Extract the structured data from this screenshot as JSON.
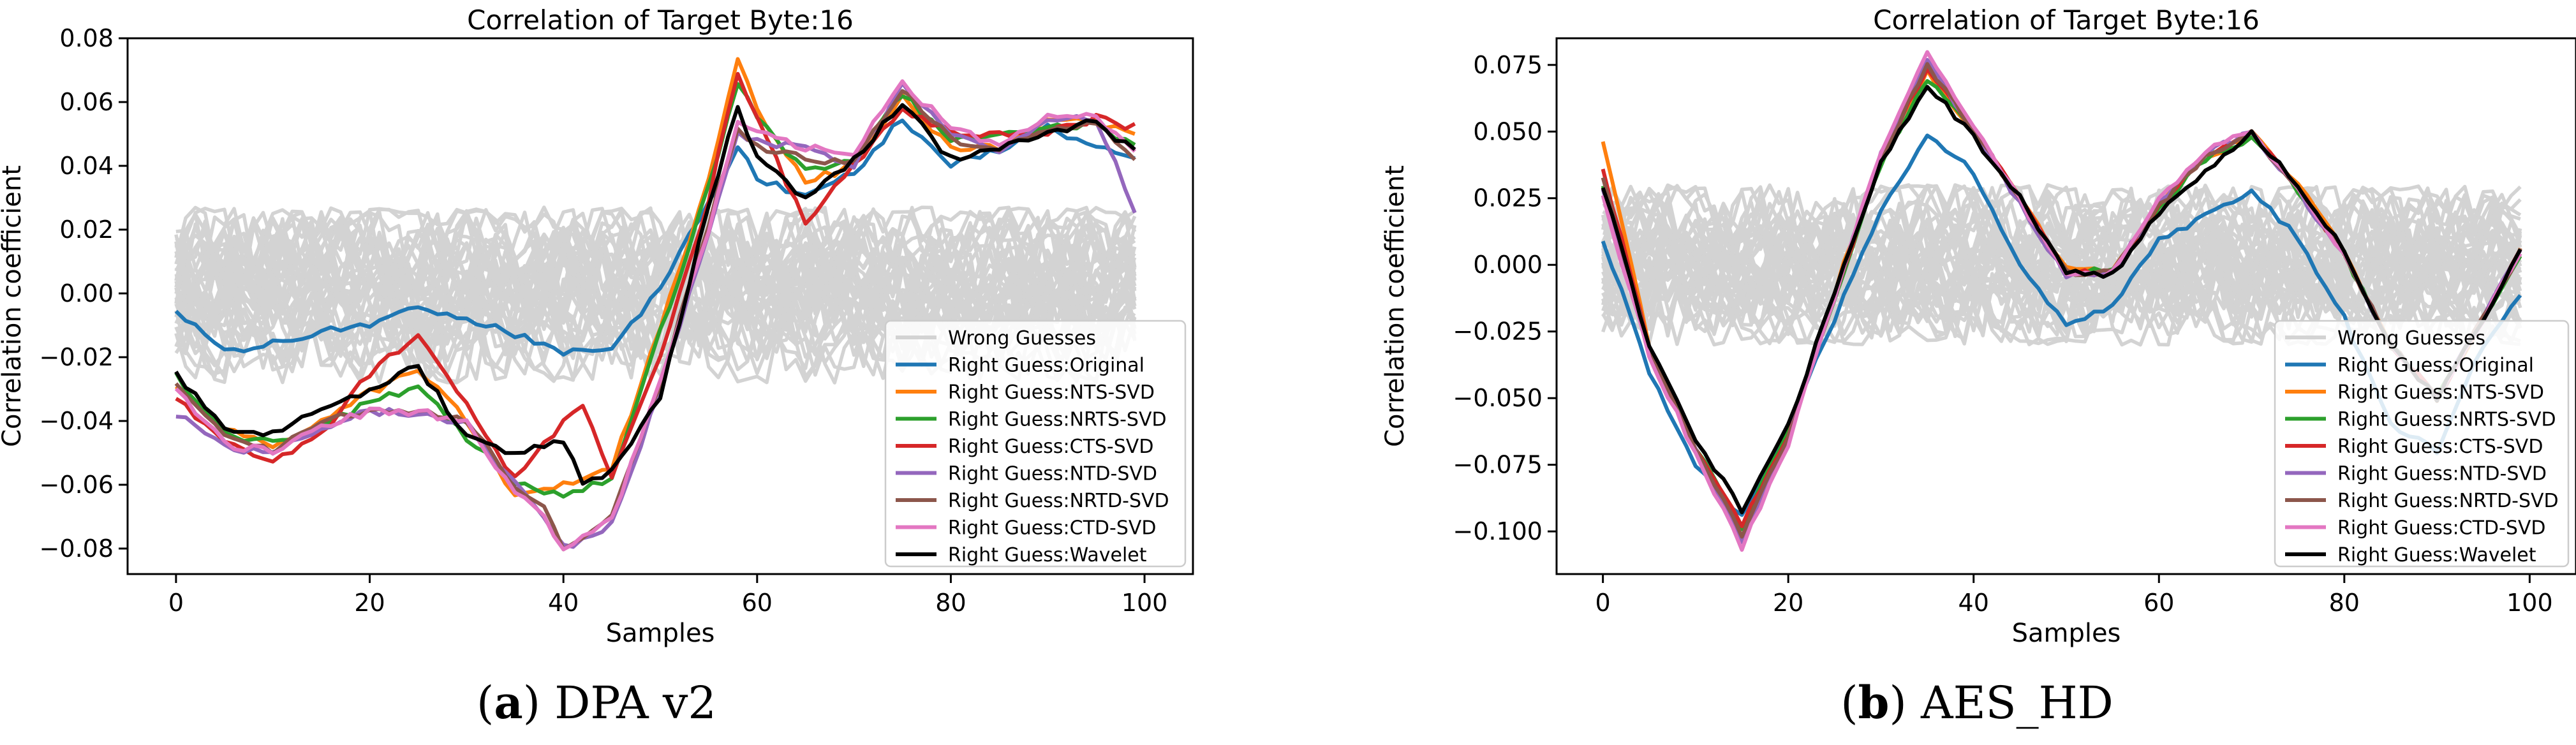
{
  "colors": {
    "Wrong Guesses": "#d3d3d3",
    "Original": "#1f77b4",
    "NTS-SVD": "#ff7f0e",
    "NRTS-SVD": "#2ca02c",
    "CTS-SVD": "#d62728",
    "NTD-SVD": "#9467bd",
    "NRTD-SVD": "#8c564b",
    "CTD-SVD": "#e377c2",
    "Wavelet": "#000000"
  },
  "captions": [
    {
      "letter": "a",
      "text": "DPA v2"
    },
    {
      "letter": "b",
      "text": "AES_HD"
    }
  ],
  "chart_data": [
    {
      "type": "line",
      "title": "Correlation of Target Byte:16",
      "xlabel": "Samples",
      "ylabel": "Correlation coefficient",
      "xlim": [
        -5,
        105
      ],
      "ylim": [
        -0.088,
        0.08
      ],
      "xticks": [
        0,
        20,
        40,
        60,
        80,
        100
      ],
      "yticks": [
        -0.08,
        -0.06,
        -0.04,
        -0.02,
        0.0,
        0.02,
        0.04,
        0.06,
        0.08
      ],
      "ytick_labels": [
        "−0.08",
        "−0.06",
        "−0.04",
        "−0.02",
        "0.00",
        "0.02",
        "0.04",
        "0.06",
        "0.08"
      ],
      "legend_position": "lower-right",
      "legend": [
        "Wrong Guesses",
        "Right Guess:Original",
        "Right Guess:NTS-SVD",
        "Right Guess:NRTS-SVD",
        "Right Guess:CTS-SVD",
        "Right Guess:NTD-SVD",
        "Right Guess:NRTD-SVD",
        "Right Guess:CTD-SVD",
        "Right Guess:Wavelet"
      ],
      "wrong_guesses": {
        "count": 40,
        "range": [
          -0.028,
          0.027
        ]
      },
      "series": [
        {
          "name": "Original",
          "x": [
            0,
            5,
            10,
            15,
            20,
            25,
            30,
            35,
            40,
            45,
            50,
            55,
            58,
            60,
            65,
            70,
            75,
            80,
            85,
            90,
            95,
            99
          ],
          "y": [
            -0.006,
            -0.018,
            -0.016,
            -0.012,
            -0.01,
            -0.004,
            -0.008,
            -0.013,
            -0.019,
            -0.017,
            0.002,
            0.028,
            0.047,
            0.036,
            0.03,
            0.038,
            0.055,
            0.04,
            0.045,
            0.052,
            0.046,
            0.043
          ]
        },
        {
          "name": "NTS-SVD",
          "x": [
            0,
            5,
            10,
            15,
            20,
            25,
            30,
            35,
            40,
            45,
            50,
            55,
            58,
            60,
            65,
            70,
            75,
            80,
            85,
            90,
            95,
            99
          ],
          "y": [
            -0.03,
            -0.043,
            -0.048,
            -0.04,
            -0.031,
            -0.024,
            -0.04,
            -0.063,
            -0.06,
            -0.055,
            -0.01,
            0.035,
            0.073,
            0.058,
            0.035,
            0.04,
            0.062,
            0.045,
            0.046,
            0.054,
            0.054,
            0.05
          ]
        },
        {
          "name": "NRTS-SVD",
          "x": [
            0,
            5,
            10,
            15,
            20,
            25,
            30,
            35,
            40,
            45,
            50,
            55,
            58,
            60,
            65,
            70,
            75,
            80,
            85,
            90,
            95,
            99
          ],
          "y": [
            -0.026,
            -0.044,
            -0.047,
            -0.042,
            -0.034,
            -0.029,
            -0.045,
            -0.06,
            -0.063,
            -0.058,
            -0.012,
            0.033,
            0.066,
            0.055,
            0.038,
            0.042,
            0.063,
            0.048,
            0.049,
            0.052,
            0.053,
            0.046
          ]
        },
        {
          "name": "CTS-SVD",
          "x": [
            0,
            5,
            10,
            15,
            20,
            25,
            30,
            35,
            40,
            42,
            45,
            50,
            55,
            58,
            60,
            65,
            70,
            75,
            80,
            85,
            90,
            95,
            99
          ],
          "y": [
            -0.032,
            -0.047,
            -0.052,
            -0.044,
            -0.025,
            -0.013,
            -0.035,
            -0.058,
            -0.04,
            -0.036,
            -0.058,
            -0.02,
            0.03,
            0.07,
            0.055,
            0.022,
            0.04,
            0.058,
            0.05,
            0.05,
            0.05,
            0.055,
            0.052
          ]
        },
        {
          "name": "NTD-SVD",
          "x": [
            0,
            5,
            10,
            15,
            20,
            25,
            30,
            35,
            38,
            40,
            45,
            50,
            55,
            58,
            60,
            65,
            70,
            75,
            80,
            85,
            90,
            95,
            99
          ],
          "y": [
            -0.038,
            -0.048,
            -0.05,
            -0.043,
            -0.037,
            -0.038,
            -0.04,
            -0.06,
            -0.07,
            -0.08,
            -0.072,
            -0.03,
            0.02,
            0.05,
            0.048,
            0.045,
            0.04,
            0.065,
            0.05,
            0.044,
            0.055,
            0.055,
            0.026
          ]
        },
        {
          "name": "NRTD-SVD",
          "x": [
            0,
            5,
            10,
            15,
            20,
            25,
            30,
            35,
            38,
            40,
            45,
            50,
            55,
            58,
            60,
            65,
            70,
            75,
            80,
            85,
            90,
            95,
            99
          ],
          "y": [
            -0.028,
            -0.045,
            -0.049,
            -0.041,
            -0.036,
            -0.037,
            -0.04,
            -0.06,
            -0.068,
            -0.08,
            -0.07,
            -0.028,
            0.022,
            0.052,
            0.046,
            0.042,
            0.041,
            0.064,
            0.048,
            0.045,
            0.052,
            0.054,
            0.042
          ]
        },
        {
          "name": "CTD-SVD",
          "x": [
            0,
            5,
            10,
            15,
            20,
            25,
            30,
            35,
            38,
            40,
            45,
            50,
            55,
            58,
            60,
            65,
            70,
            75,
            80,
            85,
            90,
            95,
            99
          ],
          "y": [
            -0.03,
            -0.047,
            -0.05,
            -0.042,
            -0.037,
            -0.037,
            -0.041,
            -0.062,
            -0.07,
            -0.081,
            -0.071,
            -0.028,
            0.02,
            0.055,
            0.05,
            0.046,
            0.044,
            0.066,
            0.052,
            0.047,
            0.055,
            0.056,
            0.044
          ]
        },
        {
          "name": "Wavelet",
          "x": [
            0,
            5,
            10,
            15,
            20,
            25,
            30,
            35,
            40,
            42,
            45,
            50,
            55,
            58,
            60,
            65,
            70,
            75,
            80,
            85,
            90,
            95,
            99
          ],
          "y": [
            -0.025,
            -0.043,
            -0.044,
            -0.037,
            -0.03,
            -0.023,
            -0.045,
            -0.05,
            -0.046,
            -0.06,
            -0.056,
            -0.033,
            0.028,
            0.058,
            0.042,
            0.03,
            0.042,
            0.06,
            0.042,
            0.046,
            0.05,
            0.054,
            0.044
          ]
        }
      ]
    },
    {
      "type": "line",
      "title": "Correlation of Target Byte:16",
      "xlabel": "Samples",
      "ylabel": "Correlation coefficient",
      "xlim": [
        -5,
        105
      ],
      "ylim": [
        -0.116,
        0.085
      ],
      "xticks": [
        0,
        20,
        40,
        60,
        80,
        100
      ],
      "yticks": [
        -0.1,
        -0.075,
        -0.05,
        -0.025,
        0.0,
        0.025,
        0.05,
        0.075
      ],
      "ytick_labels": [
        "−0.100",
        "−0.075",
        "−0.050",
        "−0.025",
        "0.000",
        "0.025",
        "0.050",
        "0.075"
      ],
      "legend_position": "lower-right",
      "legend": [
        "Wrong Guesses",
        "Right Guess:Original",
        "Right Guess:NTS-SVD",
        "Right Guess:NRTS-SVD",
        "Right Guess:CTS-SVD",
        "Right Guess:NTD-SVD",
        "Right Guess:NRTD-SVD",
        "Right Guess:CTD-SVD",
        "Right Guess:Wavelet"
      ],
      "wrong_guesses": {
        "count": 40,
        "range": [
          -0.03,
          0.03
        ]
      },
      "series": [
        {
          "name": "Original",
          "x": [
            0,
            5,
            10,
            15,
            20,
            25,
            30,
            35,
            40,
            45,
            50,
            55,
            60,
            65,
            70,
            75,
            80,
            85,
            90,
            95,
            99
          ],
          "y": [
            0.01,
            -0.04,
            -0.075,
            -0.095,
            -0.06,
            -0.02,
            0.02,
            0.048,
            0.035,
            0.0,
            -0.022,
            -0.015,
            0.01,
            0.018,
            0.028,
            0.01,
            -0.02,
            -0.06,
            -0.07,
            -0.03,
            -0.012
          ]
        },
        {
          "name": "NTS-SVD",
          "x": [
            0,
            5,
            10,
            15,
            20,
            25,
            30,
            35,
            40,
            45,
            50,
            55,
            60,
            65,
            70,
            75,
            80,
            85,
            90,
            95,
            99
          ],
          "y": [
            0.047,
            -0.03,
            -0.07,
            -0.1,
            -0.065,
            -0.01,
            0.04,
            0.072,
            0.05,
            0.025,
            -0.002,
            -0.002,
            0.022,
            0.04,
            0.049,
            0.03,
            0.005,
            -0.03,
            -0.05,
            -0.02,
            0.005
          ]
        },
        {
          "name": "NRTS-SVD",
          "x": [
            0,
            5,
            10,
            15,
            20,
            25,
            30,
            35,
            40,
            45,
            50,
            55,
            60,
            65,
            70,
            75,
            80,
            85,
            90,
            95,
            99
          ],
          "y": [
            0.03,
            -0.032,
            -0.068,
            -0.098,
            -0.062,
            -0.012,
            0.038,
            0.07,
            0.05,
            0.024,
            -0.003,
            -0.002,
            0.021,
            0.04,
            0.048,
            0.028,
            0.004,
            -0.03,
            -0.05,
            -0.02,
            0.004
          ]
        },
        {
          "name": "CTS-SVD",
          "x": [
            0,
            5,
            10,
            15,
            20,
            25,
            30,
            35,
            40,
            45,
            50,
            55,
            60,
            65,
            70,
            75,
            80,
            85,
            90,
            95,
            99
          ],
          "y": [
            0.036,
            -0.031,
            -0.069,
            -0.097,
            -0.064,
            -0.011,
            0.039,
            0.074,
            0.051,
            0.025,
            -0.003,
            -0.003,
            0.022,
            0.041,
            0.049,
            0.029,
            0.004,
            -0.03,
            -0.05,
            -0.02,
            0.006
          ]
        },
        {
          "name": "NTD-SVD",
          "x": [
            0,
            5,
            10,
            15,
            20,
            25,
            30,
            35,
            40,
            45,
            50,
            55,
            60,
            65,
            70,
            75,
            80,
            85,
            90,
            95,
            99
          ],
          "y": [
            0.028,
            -0.033,
            -0.07,
            -0.103,
            -0.066,
            -0.012,
            0.042,
            0.077,
            0.05,
            0.023,
            -0.004,
            -0.003,
            0.023,
            0.042,
            0.05,
            0.028,
            0.003,
            -0.03,
            -0.05,
            -0.02,
            0.005
          ]
        },
        {
          "name": "NRTD-SVD",
          "x": [
            0,
            5,
            10,
            15,
            20,
            25,
            30,
            35,
            40,
            45,
            50,
            55,
            60,
            65,
            70,
            75,
            80,
            85,
            90,
            95,
            99
          ],
          "y": [
            0.032,
            -0.032,
            -0.069,
            -0.101,
            -0.065,
            -0.012,
            0.04,
            0.075,
            0.051,
            0.024,
            -0.003,
            -0.003,
            0.022,
            0.041,
            0.049,
            0.029,
            0.004,
            -0.03,
            -0.05,
            -0.02,
            0.005
          ]
        },
        {
          "name": "CTD-SVD",
          "x": [
            0,
            5,
            10,
            15,
            20,
            25,
            30,
            35,
            40,
            45,
            50,
            55,
            60,
            65,
            70,
            75,
            80,
            85,
            90,
            95,
            99
          ],
          "y": [
            0.025,
            -0.034,
            -0.071,
            -0.106,
            -0.067,
            -0.012,
            0.043,
            0.079,
            0.052,
            0.024,
            -0.004,
            -0.003,
            0.024,
            0.043,
            0.05,
            0.028,
            0.003,
            -0.03,
            -0.05,
            -0.02,
            0.005
          ]
        },
        {
          "name": "Wavelet",
          "x": [
            0,
            5,
            10,
            15,
            20,
            25,
            30,
            35,
            40,
            45,
            50,
            55,
            60,
            65,
            70,
            75,
            80,
            85,
            90,
            95,
            99
          ],
          "y": [
            0.03,
            -0.03,
            -0.065,
            -0.092,
            -0.06,
            -0.01,
            0.038,
            0.068,
            0.048,
            0.025,
            -0.003,
            -0.004,
            0.02,
            0.035,
            0.049,
            0.03,
            0.005,
            -0.03,
            -0.05,
            -0.02,
            0.006
          ]
        }
      ]
    }
  ]
}
